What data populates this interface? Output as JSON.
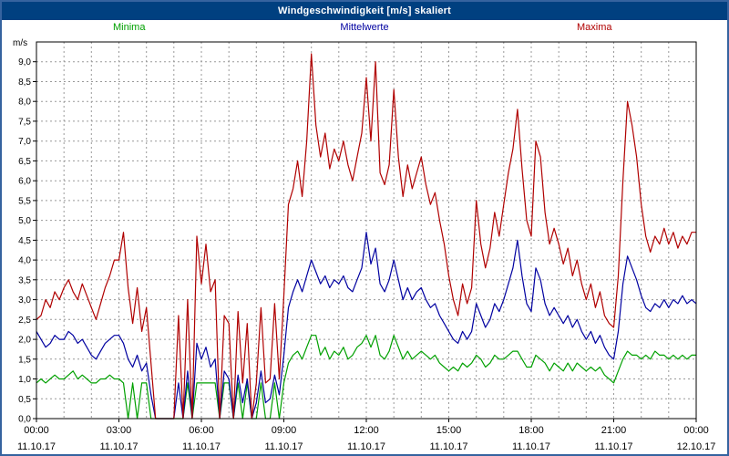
{
  "title": "Windgeschwindigkeit [m/s] skaliert",
  "unit_label": "m/s",
  "legend": [
    {
      "label": "Minima",
      "color": "#00a000"
    },
    {
      "label": "Mittelwerte",
      "color": "#0000a0"
    },
    {
      "label": "Maxima",
      "color": "#b00000"
    }
  ],
  "chart_data": {
    "type": "line",
    "title": "Windgeschwindigkeit [m/s] skaliert",
    "xlabel": "",
    "ylabel": "m/s",
    "ylim": [
      0,
      9.5
    ],
    "y_tick_step": 0.5,
    "y_tick_labels": [
      "0,0",
      "0,5",
      "1,0",
      "1,5",
      "2,0",
      "2,5",
      "3,0",
      "3,5",
      "4,0",
      "4,5",
      "5,0",
      "5,5",
      "6,0",
      "6,5",
      "7,0",
      "7,5",
      "8,0",
      "8,5",
      "9,0"
    ],
    "x_hours": 24,
    "sample_interval_minutes": 10,
    "grid": {
      "horizontal_step": 0.5,
      "vertical_step_hours": 1,
      "style": "dashed",
      "color": "#999999"
    },
    "legend_position": "top",
    "x_ticks": [
      {
        "hour": 0,
        "time": "00:00",
        "date": "11.10.17"
      },
      {
        "hour": 3,
        "time": "03:00",
        "date": "11.10.17"
      },
      {
        "hour": 6,
        "time": "06:00",
        "date": "11.10.17"
      },
      {
        "hour": 9,
        "time": "09:00",
        "date": "11.10.17"
      },
      {
        "hour": 12,
        "time": "12:00",
        "date": "11.10.17"
      },
      {
        "hour": 15,
        "time": "15:00",
        "date": "11.10.17"
      },
      {
        "hour": 18,
        "time": "18:00",
        "date": "11.10.17"
      },
      {
        "hour": 21,
        "time": "21:00",
        "date": "11.10.17"
      },
      {
        "hour": 24,
        "time": "00:00",
        "date": "12.10.17"
      }
    ],
    "series": [
      {
        "name": "Minima",
        "color": "#00a000",
        "values": [
          0.9,
          1.0,
          0.9,
          1.0,
          1.1,
          1.0,
          1.0,
          1.1,
          1.2,
          1.0,
          1.1,
          1.0,
          0.9,
          0.9,
          1.0,
          1.0,
          1.1,
          1.0,
          1.0,
          0.9,
          0.0,
          0.9,
          0.0,
          0.9,
          0.9,
          0.0,
          0.0,
          0.0,
          0.0,
          0.0,
          0.0,
          0.0,
          0.0,
          0.9,
          0.0,
          0.9,
          0.9,
          0.9,
          0.9,
          0.9,
          0.0,
          0.9,
          0.9,
          0.0,
          0.9,
          0.0,
          0.9,
          0.0,
          0.0,
          0.9,
          0.0,
          0.0,
          0.9,
          0.0,
          0.9,
          1.4,
          1.6,
          1.7,
          1.5,
          1.8,
          2.1,
          2.1,
          1.6,
          1.8,
          1.5,
          1.7,
          1.6,
          1.8,
          1.5,
          1.6,
          1.8,
          1.9,
          2.1,
          1.8,
          2.1,
          1.6,
          1.5,
          1.7,
          2.1,
          1.8,
          1.5,
          1.7,
          1.5,
          1.6,
          1.7,
          1.6,
          1.5,
          1.6,
          1.4,
          1.3,
          1.2,
          1.3,
          1.2,
          1.4,
          1.3,
          1.4,
          1.6,
          1.5,
          1.3,
          1.4,
          1.6,
          1.5,
          1.5,
          1.6,
          1.7,
          1.7,
          1.5,
          1.3,
          1.3,
          1.6,
          1.5,
          1.4,
          1.2,
          1.4,
          1.3,
          1.2,
          1.4,
          1.2,
          1.4,
          1.3,
          1.2,
          1.3,
          1.2,
          1.3,
          1.1,
          1.0,
          0.9,
          1.2,
          1.5,
          1.7,
          1.6,
          1.6,
          1.5,
          1.6,
          1.5,
          1.7,
          1.6,
          1.6,
          1.5,
          1.6,
          1.5,
          1.6,
          1.5,
          1.6,
          1.6
        ]
      },
      {
        "name": "Mittelwerte",
        "color": "#0000a0",
        "values": [
          2.2,
          2.0,
          1.8,
          1.9,
          2.1,
          2.0,
          2.0,
          2.2,
          2.1,
          1.9,
          2.0,
          1.8,
          1.6,
          1.5,
          1.7,
          1.9,
          2.0,
          2.1,
          2.1,
          1.9,
          1.5,
          1.3,
          1.6,
          1.2,
          1.4,
          0.6,
          0.0,
          0.0,
          0.0,
          0.0,
          0.0,
          0.9,
          0.0,
          1.2,
          0.0,
          1.9,
          1.5,
          1.8,
          1.3,
          1.5,
          0.0,
          1.2,
          1.0,
          0.0,
          1.1,
          0.4,
          1.0,
          0.0,
          0.4,
          1.2,
          0.4,
          0.5,
          1.1,
          0.6,
          1.6,
          2.8,
          3.2,
          3.5,
          3.2,
          3.6,
          4.0,
          3.7,
          3.4,
          3.6,
          3.3,
          3.5,
          3.4,
          3.6,
          3.3,
          3.2,
          3.5,
          3.8,
          4.7,
          3.9,
          4.3,
          3.4,
          3.2,
          3.5,
          4.0,
          3.5,
          3.0,
          3.3,
          3.0,
          3.2,
          3.3,
          3.0,
          2.8,
          2.9,
          2.6,
          2.4,
          2.2,
          2.0,
          1.9,
          2.2,
          2.0,
          2.2,
          2.9,
          2.6,
          2.3,
          2.5,
          2.9,
          2.7,
          3.0,
          3.4,
          3.8,
          4.5,
          3.6,
          2.9,
          2.7,
          3.8,
          3.5,
          2.9,
          2.6,
          2.8,
          2.6,
          2.4,
          2.6,
          2.3,
          2.5,
          2.2,
          2.0,
          2.2,
          1.9,
          2.1,
          1.8,
          1.6,
          1.5,
          2.2,
          3.4,
          4.1,
          3.8,
          3.5,
          3.1,
          2.8,
          2.7,
          2.9,
          2.8,
          3.0,
          2.8,
          3.0,
          2.9,
          3.1,
          2.9,
          3.0,
          2.9
        ]
      },
      {
        "name": "Maxima",
        "color": "#b00000",
        "values": [
          2.5,
          2.6,
          3.0,
          2.8,
          3.2,
          3.0,
          3.3,
          3.5,
          3.2,
          3.0,
          3.4,
          3.1,
          2.8,
          2.5,
          2.9,
          3.3,
          3.6,
          4.0,
          4.0,
          4.7,
          3.3,
          2.4,
          3.3,
          2.2,
          2.8,
          1.4,
          0.0,
          0.0,
          0.0,
          0.0,
          0.0,
          2.6,
          0.0,
          3.0,
          0.0,
          4.6,
          3.4,
          4.4,
          3.2,
          3.5,
          0.0,
          2.6,
          2.4,
          0.0,
          2.7,
          0.9,
          2.4,
          0.0,
          0.9,
          2.8,
          0.9,
          1.0,
          2.9,
          1.0,
          3.1,
          5.4,
          5.8,
          6.5,
          5.6,
          7.0,
          9.2,
          7.4,
          6.6,
          7.2,
          6.3,
          6.8,
          6.5,
          7.0,
          6.4,
          6.0,
          6.6,
          7.2,
          8.6,
          7.0,
          9.0,
          6.2,
          5.9,
          6.4,
          8.3,
          6.6,
          5.6,
          6.4,
          5.8,
          6.2,
          6.6,
          5.9,
          5.4,
          5.7,
          5.0,
          4.4,
          3.6,
          3.0,
          2.6,
          3.4,
          2.9,
          3.3,
          5.5,
          4.4,
          3.8,
          4.3,
          5.2,
          4.6,
          5.4,
          6.2,
          6.8,
          7.8,
          6.3,
          5.0,
          4.6,
          7.0,
          6.6,
          5.2,
          4.4,
          4.8,
          4.4,
          3.9,
          4.3,
          3.6,
          4.0,
          3.4,
          3.0,
          3.4,
          2.8,
          3.2,
          2.6,
          2.4,
          2.3,
          3.6,
          6.0,
          8.0,
          7.4,
          6.6,
          5.4,
          4.6,
          4.2,
          4.6,
          4.4,
          4.8,
          4.4,
          4.7,
          4.3,
          4.6,
          4.4,
          4.7,
          4.7
        ]
      }
    ]
  }
}
